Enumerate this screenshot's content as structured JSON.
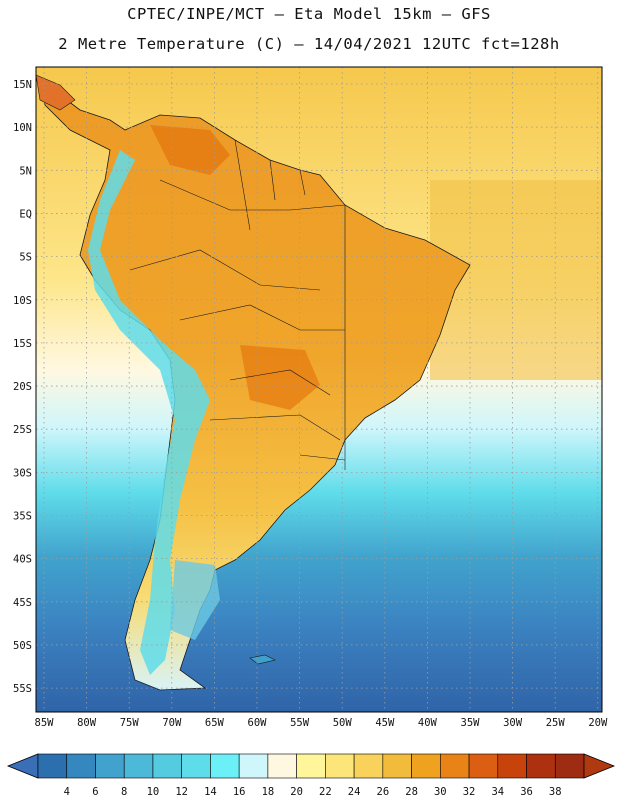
{
  "title": {
    "line1": "CPTEC/INPE/MCT –  Eta Model 15km – GFS",
    "line2": "2 Metre Temperature (C) – 14/04/2021 12UTC fct=128h"
  },
  "map": {
    "region": "South America",
    "lat_labels": [
      "15N",
      "10N",
      "5N",
      "EQ",
      "5S",
      "10S",
      "15S",
      "20S",
      "25S",
      "30S",
      "35S",
      "40S",
      "45S",
      "50S",
      "55S"
    ],
    "lon_labels": [
      "85W",
      "80W",
      "75W",
      "70W",
      "65W",
      "60W",
      "55W",
      "50W",
      "45W",
      "40W",
      "35W",
      "30W",
      "25W",
      "20W"
    ]
  },
  "colorbar": {
    "ticks": [
      "4",
      "6",
      "8",
      "10",
      "12",
      "14",
      "16",
      "18",
      "20",
      "22",
      "24",
      "26",
      "28",
      "30",
      "32",
      "34",
      "36",
      "38"
    ],
    "colors": [
      "#2b6fae",
      "#3487bf",
      "#41a3cd",
      "#4db9d9",
      "#55cbe0",
      "#5fdcea",
      "#6cf0f7",
      "#cff6fb",
      "#fff8e1",
      "#fff59a",
      "#fde679",
      "#f8d25a",
      "#f1bb3c",
      "#efa21f",
      "#e98317",
      "#dc5e12",
      "#c8420c",
      "#ad3110",
      "#9e2c12"
    ],
    "left_arrow_color": "#3a6fb7",
    "right_arrow_color": "#b03a10"
  }
}
